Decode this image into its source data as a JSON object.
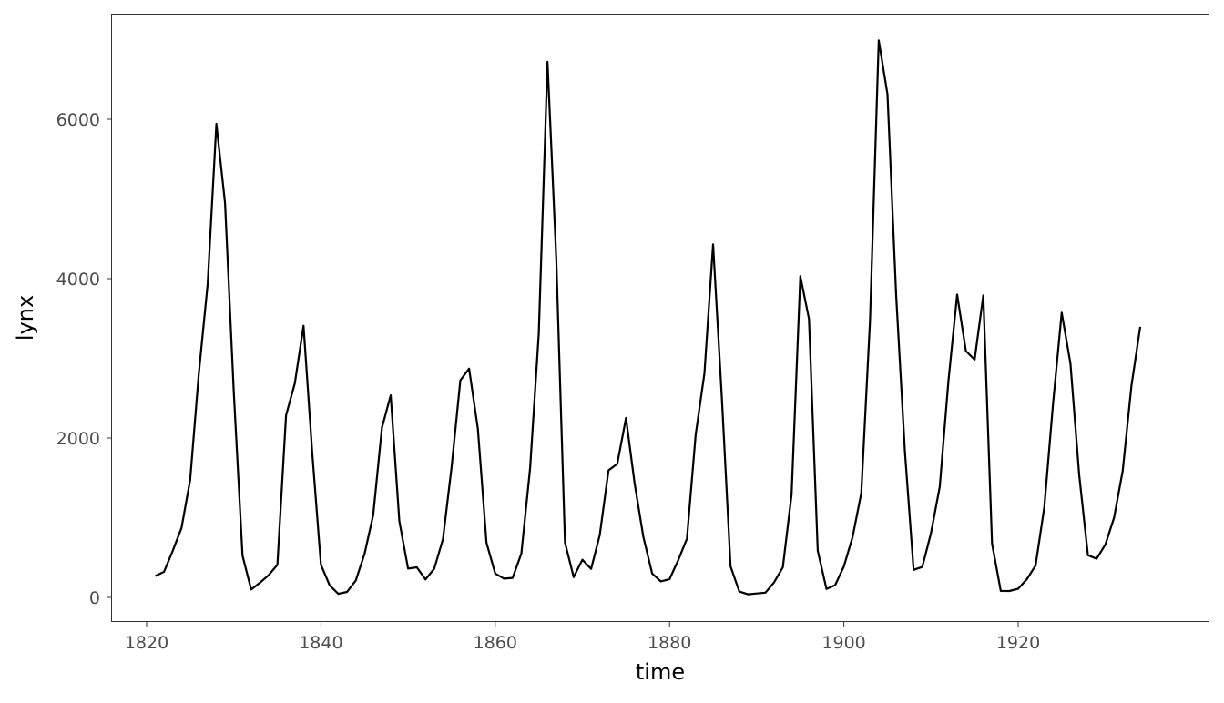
{
  "chart_data": {
    "type": "line",
    "xlabel": "time",
    "ylabel": "lynx",
    "xlim": [
      1815.35,
      1939.65
    ],
    "ylim": [
      -308.6,
      7338.6
    ],
    "x_ticks": [
      1820,
      1840,
      1860,
      1880,
      1900,
      1920
    ],
    "y_ticks": [
      0,
      2000,
      4000,
      6000
    ],
    "grid": false,
    "line_color": "#000000",
    "x_start": 1821,
    "values": [
      269,
      321,
      585,
      871,
      1475,
      2821,
      3928,
      5943,
      4950,
      2577,
      523,
      98,
      184,
      279,
      409,
      2285,
      2685,
      3409,
      1824,
      409,
      151,
      45,
      68,
      213,
      546,
      1033,
      2129,
      2536,
      957,
      361,
      377,
      225,
      360,
      731,
      1638,
      2725,
      2871,
      2119,
      684,
      299,
      236,
      245,
      552,
      1623,
      3311,
      6721,
      4254,
      687,
      255,
      473,
      358,
      784,
      1594,
      1676,
      2251,
      1426,
      756,
      299,
      201,
      229,
      469,
      736,
      2042,
      2811,
      4431,
      2511,
      389,
      73,
      39,
      49,
      59,
      188,
      377,
      1292,
      4031,
      3495,
      587,
      105,
      153,
      387,
      758,
      1307,
      3465,
      6991,
      6313,
      3794,
      1836,
      345,
      382,
      808,
      1388,
      2713,
      3800,
      3091,
      2985,
      3790,
      674,
      81,
      80,
      108,
      229,
      399,
      1132,
      2432,
      3574,
      2935,
      1537,
      529,
      485,
      662,
      1000,
      1590,
      2657,
      3396
    ]
  }
}
